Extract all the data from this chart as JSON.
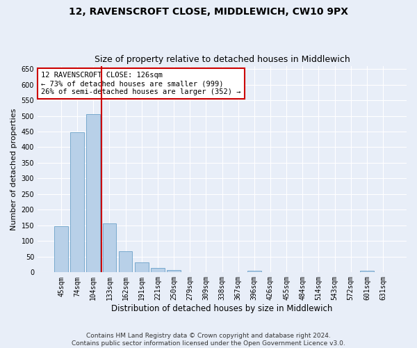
{
  "title": "12, RAVENSCROFT CLOSE, MIDDLEWICH, CW10 9PX",
  "subtitle": "Size of property relative to detached houses in Middlewich",
  "xlabel": "Distribution of detached houses by size in Middlewich",
  "ylabel": "Number of detached properties",
  "bar_labels": [
    "45sqm",
    "74sqm",
    "104sqm",
    "133sqm",
    "162sqm",
    "191sqm",
    "221sqm",
    "250sqm",
    "279sqm",
    "309sqm",
    "338sqm",
    "367sqm",
    "396sqm",
    "426sqm",
    "455sqm",
    "484sqm",
    "514sqm",
    "543sqm",
    "572sqm",
    "601sqm",
    "631sqm"
  ],
  "bar_values": [
    147,
    448,
    506,
    157,
    68,
    32,
    13,
    8,
    0,
    0,
    0,
    0,
    6,
    0,
    0,
    0,
    0,
    0,
    0,
    5,
    0
  ],
  "bar_color": "#b8d0e8",
  "bar_edge_color": "#6aa0c8",
  "background_color": "#e8eef8",
  "vline_x": 2.5,
  "vline_color": "#cc0000",
  "annotation_text": "12 RAVENSCROFT CLOSE: 126sqm\n← 73% of detached houses are smaller (999)\n26% of semi-detached houses are larger (352) →",
  "annotation_box_color": "#ffffff",
  "annotation_box_edge": "#cc0000",
  "ylim": [
    0,
    660
  ],
  "yticks": [
    0,
    50,
    100,
    150,
    200,
    250,
    300,
    350,
    400,
    450,
    500,
    550,
    600,
    650
  ],
  "footer": "Contains HM Land Registry data © Crown copyright and database right 2024.\nContains public sector information licensed under the Open Government Licence v3.0.",
  "title_fontsize": 10,
  "subtitle_fontsize": 9,
  "xlabel_fontsize": 8.5,
  "ylabel_fontsize": 8,
  "tick_fontsize": 7,
  "annotation_fontsize": 7.5,
  "footer_fontsize": 6.5
}
